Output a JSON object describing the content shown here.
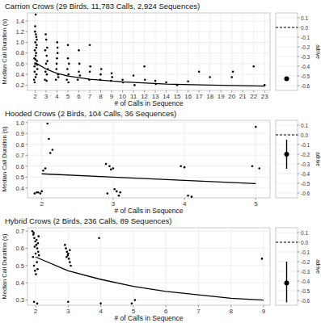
{
  "chart_data": [
    {
      "type": "scatter",
      "title": "Carrion Crows (29 Birds, 11,783 Calls, 2,924 Sequences)",
      "x_label": "# of Calls in Sequence",
      "y_label": "Median Call Duration (s)",
      "xlim": [
        1.3,
        23.5
      ],
      "ylim": [
        0.1,
        1.55
      ],
      "xticks": [
        2,
        3,
        4,
        5,
        6,
        7,
        8,
        9,
        10,
        11,
        12,
        13,
        14,
        15,
        16,
        17,
        18,
        19,
        20,
        21,
        22,
        23
      ],
      "yticks": [
        0.2,
        0.4,
        0.6,
        0.8,
        {
          "value": 1,
          "label": "1.0"
        },
        1.2,
        1.4
      ],
      "grid": true,
      "series": [
        {
          "type": "scatter",
          "color": "#000000",
          "marker": "circle",
          "x": [
            1.9,
            1.95,
            2.0,
            2.05,
            2.1,
            2.15,
            2.2,
            1.92,
            1.97,
            2.02,
            2.07,
            2.12,
            2.17,
            1.94,
            1.99,
            2.04,
            2.09,
            2.14,
            2.0,
            2.05,
            1.96,
            2.11,
            2.18,
            2.03,
            2.9,
            2.95,
            3.0,
            3.05,
            3.1,
            3.15,
            2.92,
            3.02,
            3.07,
            3.12,
            2.97,
            3.05,
            3.9,
            3.95,
            4.0,
            4.05,
            4.1,
            3.97,
            4.02,
            4.12,
            4.05,
            4.9,
            4.95,
            5.0,
            5.05,
            5.1,
            5.0,
            5.05,
            5.9,
            6.0,
            6.05,
            6.1,
            6.0,
            6.95,
            7.0,
            7.05,
            7.0,
            7.95,
            8.0,
            8.05,
            8.95,
            9.05,
            9.0,
            10.0,
            10.05,
            11.0,
            11.1,
            12.0,
            12.05,
            13.0,
            13.05,
            14.0,
            15.0,
            16.0,
            17.0,
            18.0,
            20.0,
            20.1,
            22.0,
            23.0
          ],
          "values": [
            0.3,
            0.45,
            0.6,
            0.75,
            0.9,
            1.05,
            0.5,
            0.7,
            0.85,
            1.0,
            1.15,
            0.4,
            0.65,
            0.55,
            1.2,
            0.35,
            0.8,
            0.95,
            1.3,
            1.52,
            0.25,
            1.1,
            0.58,
            0.68,
            0.3,
            0.45,
            0.6,
            0.75,
            0.9,
            0.5,
            0.85,
            1.05,
            0.4,
            0.65,
            1.15,
            0.28,
            0.3,
            0.5,
            0.7,
            0.9,
            0.4,
            0.6,
            1.0,
            0.35,
            0.8,
            0.3,
            0.5,
            0.7,
            0.4,
            0.6,
            0.95,
            0.25,
            0.3,
            0.45,
            0.6,
            0.38,
            0.85,
            0.3,
            0.45,
            0.55,
            0.95,
            0.3,
            0.4,
            0.5,
            0.28,
            0.35,
            0.42,
            0.3,
            0.25,
            0.38,
            0.2,
            0.55,
            0.3,
            0.28,
            0.22,
            0.25,
            0.2,
            0.27,
            0.45,
            0.35,
            0.35,
            0.45,
            0.55,
            0.2
          ]
        },
        {
          "type": "line",
          "color": "#000000",
          "line_style": "solid",
          "x": [
            2,
            3,
            4,
            5,
            7,
            10,
            14,
            18,
            23
          ],
          "values": [
            0.62,
            0.5,
            0.42,
            0.37,
            0.31,
            0.26,
            0.22,
            0.2,
            0.18
          ]
        }
      ],
      "estimate": {
        "value": -0.53,
        "lower": -0.55,
        "upper": -0.51,
        "reference": 0,
        "label": "adrive",
        "ylim": [
          -0.65,
          0.15
        ],
        "yticks": [
          0.1,
          {
            "value": 0,
            "label": "0.0"
          },
          -0.1,
          -0.2,
          -0.3,
          -0.4,
          -0.5,
          -0.6
        ]
      }
    },
    {
      "type": "scatter",
      "title": "Hooded Crows (2 Birds, 104 Calls, 36 Sequences)",
      "x_label": "# of Calls in Sequence",
      "y_label": "Median Call Duration (s)",
      "xlim": [
        1.8,
        5.2
      ],
      "ylim": [
        0.31,
        1.02
      ],
      "xticks": [
        2,
        3,
        4,
        5
      ],
      "yticks": [
        0.4,
        0.5,
        0.6,
        0.7,
        0.8,
        0.9,
        {
          "value": 1,
          "label": "1.0"
        }
      ],
      "grid": true,
      "series": [
        {
          "type": "scatter",
          "color": "#000000",
          "marker": "circle",
          "x": [
            1.9,
            1.95,
            2.0,
            2.02,
            2.05,
            2.08,
            2.1,
            2.12,
            2.15,
            1.93,
            1.98,
            2.9,
            2.95,
            3.0,
            3.05,
            3.1,
            2.92,
            3.02,
            3.08,
            2.97,
            3.95,
            4.0,
            4.05,
            4.1,
            4.95,
            5.05,
            5.0
          ],
          "values": [
            0.35,
            0.36,
            0.37,
            0.56,
            0.58,
            0.99,
            0.85,
            0.72,
            0.75,
            0.36,
            0.35,
            0.62,
            0.6,
            0.58,
            0.37,
            0.36,
            0.35,
            0.39,
            0.33,
            0.57,
            0.6,
            0.59,
            0.33,
            0.32,
            0.6,
            0.58,
            0.96
          ]
        },
        {
          "type": "line",
          "color": "#000000",
          "line_style": "solid",
          "x": [
            2,
            3,
            4,
            5
          ],
          "values": [
            0.53,
            0.5,
            0.47,
            0.44
          ]
        }
      ],
      "estimate": {
        "value": -0.2,
        "lower": -0.35,
        "upper": -0.05,
        "reference": 0,
        "label": "adrive",
        "ylim": [
          -0.65,
          0.15
        ],
        "yticks": [
          0.1,
          {
            "value": 0,
            "label": "0.0"
          },
          -0.1,
          -0.2,
          -0.3,
          -0.4,
          -0.5,
          -0.6
        ]
      }
    },
    {
      "type": "scatter",
      "title": "Hybrid Crows (2 Birds, 236 Calls, 89 Sequences)",
      "x_label": "# of Calls in Sequence",
      "y_label": "Median Call Duration (s)",
      "xlim": [
        1.75,
        9.2
      ],
      "ylim": [
        0.27,
        0.72
      ],
      "xticks": [
        2,
        3,
        4,
        5,
        6,
        7,
        8,
        9
      ],
      "yticks": [
        0.3,
        0.4,
        0.5,
        0.6,
        0.7
      ],
      "grid": true,
      "series": [
        {
          "type": "scatter",
          "color": "#000000",
          "marker": "circle",
          "x": [
            1.9,
            1.93,
            1.96,
            1.99,
            2.02,
            2.05,
            2.08,
            2.1,
            1.92,
            1.95,
            1.98,
            2.01,
            2.04,
            2.07,
            1.94,
            2.0,
            2.06,
            1.97,
            2.03,
            2.09,
            1.95,
            2.05,
            2.9,
            2.93,
            2.96,
            2.99,
            3.02,
            3.05,
            3.08,
            2.95,
            3.0,
            3.05,
            3.0,
            3.95,
            4.0,
            4.95,
            5.05,
            8.95
          ],
          "values": [
            0.7,
            0.68,
            0.66,
            0.64,
            0.62,
            0.6,
            0.58,
            0.56,
            0.55,
            0.5,
            0.47,
            0.45,
            0.52,
            0.63,
            0.69,
            0.57,
            0.48,
            0.61,
            0.65,
            0.67,
            0.29,
            0.28,
            0.62,
            0.6,
            0.58,
            0.56,
            0.54,
            0.52,
            0.5,
            0.55,
            0.57,
            0.59,
            0.29,
            0.66,
            0.28,
            0.28,
            0.3,
            0.54
          ]
        },
        {
          "type": "line",
          "color": "#000000",
          "line_style": "solid",
          "x": [
            2,
            3,
            4,
            5,
            6,
            7,
            8,
            9
          ],
          "values": [
            0.55,
            0.47,
            0.42,
            0.38,
            0.35,
            0.33,
            0.31,
            0.3
          ]
        }
      ],
      "estimate": {
        "value": -0.42,
        "lower": -0.62,
        "upper": -0.2,
        "reference": 0,
        "label": "adrive",
        "ylim": [
          -0.65,
          0.15
        ],
        "yticks": [
          0.1,
          {
            "value": 0,
            "label": "0.0"
          },
          -0.1,
          -0.2,
          -0.3,
          -0.4,
          -0.5,
          -0.6
        ]
      }
    }
  ]
}
